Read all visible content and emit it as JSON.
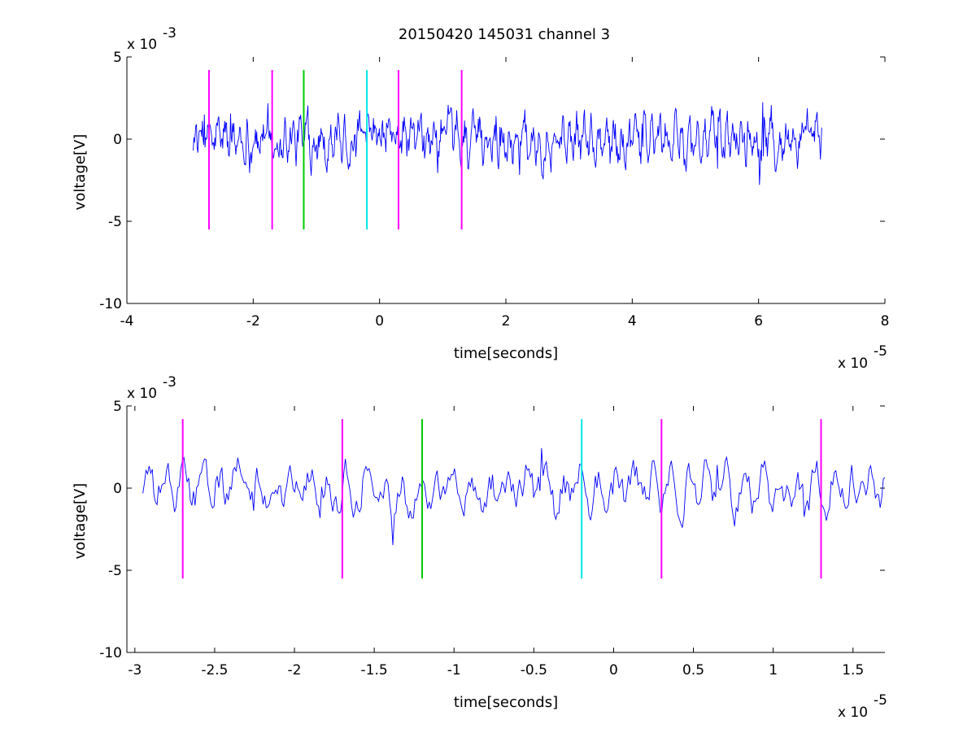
{
  "figure": {
    "title": "20150420 145031 channel 3"
  },
  "chart_data": [
    {
      "type": "line",
      "title": "20150420 145031 channel 3",
      "xlabel": "time[seconds]",
      "ylabel": "voltage[V]",
      "xlim": [
        -4e-05,
        8e-05
      ],
      "ylim": [
        -0.01,
        0.005
      ],
      "x_ticks": [
        -4,
        -2,
        0,
        2,
        4,
        6,
        8
      ],
      "x_tick_labels": [
        "-4",
        "-2",
        "0",
        "2",
        "4",
        "6",
        "8"
      ],
      "x_multiplier_base": "x 10",
      "x_multiplier_exp": "-5",
      "y_ticks": [
        5,
        0,
        -5,
        -10
      ],
      "y_tick_labels": [
        "5",
        "0",
        "-5",
        "-10"
      ],
      "y_multiplier_base": "x 10",
      "y_multiplier_exp": "-3",
      "grid": false,
      "series": [
        {
          "color": "#0000ff",
          "x_range": [
            -2.95e-05,
            7e-05
          ],
          "y_min": -0.005,
          "y_max": 0.0035,
          "sample_count": 960
        }
      ],
      "markers": [
        {
          "x": -2.7e-05,
          "color": "#ff00ff",
          "y_range": [
            -0.0055,
            0.0042
          ]
        },
        {
          "x": -1.7e-05,
          "color": "#ff00ff",
          "y_range": [
            -0.0055,
            0.0042
          ]
        },
        {
          "x": -1.2e-05,
          "color": "#00cc00",
          "y_range": [
            -0.0055,
            0.0042
          ]
        },
        {
          "x": -2e-06,
          "color": "#00e6e6",
          "y_range": [
            -0.0055,
            0.0042
          ]
        },
        {
          "x": 3e-06,
          "color": "#ff00ff",
          "y_range": [
            -0.0055,
            0.0042
          ]
        },
        {
          "x": 1.3e-05,
          "color": "#ff00ff",
          "y_range": [
            -0.0055,
            0.0042
          ]
        }
      ]
    },
    {
      "type": "line",
      "title": "",
      "xlabel": "time[seconds]",
      "ylabel": "voltage[V]",
      "xlim": [
        -3.05e-05,
        1.7e-05
      ],
      "ylim": [
        -0.01,
        0.005
      ],
      "x_ticks": [
        -3,
        -2.5,
        -2,
        -1.5,
        -1,
        -0.5,
        0,
        0.5,
        1,
        1.5
      ],
      "x_tick_labels": [
        "-3",
        "-2.5",
        "-2",
        "-1.5",
        "-1",
        "-0.5",
        "0",
        "0.5",
        "1",
        "1.5"
      ],
      "x_multiplier_base": "x 10",
      "x_multiplier_exp": "-5",
      "y_ticks": [
        5,
        0,
        -5,
        -10
      ],
      "y_tick_labels": [
        "5",
        "0",
        "-5",
        "-10"
      ],
      "y_multiplier_base": "x 10",
      "y_multiplier_exp": "-3",
      "grid": false,
      "series": [
        {
          "color": "#0000ff",
          "x_range": [
            -2.95e-05,
            1.7e-05
          ],
          "y_min": -0.005,
          "y_max": 0.0038,
          "sample_count": 470
        }
      ],
      "markers": [
        {
          "x": -2.7e-05,
          "color": "#ff00ff",
          "y_range": [
            -0.0055,
            0.0042
          ]
        },
        {
          "x": -1.7e-05,
          "color": "#ff00ff",
          "y_range": [
            -0.0055,
            0.0042
          ]
        },
        {
          "x": -1.2e-05,
          "color": "#00cc00",
          "y_range": [
            -0.0055,
            0.0042
          ]
        },
        {
          "x": -2e-06,
          "color": "#00e6e6",
          "y_range": [
            -0.0055,
            0.0042
          ]
        },
        {
          "x": 3e-06,
          "color": "#ff00ff",
          "y_range": [
            -0.0055,
            0.0042
          ]
        },
        {
          "x": 1.3e-05,
          "color": "#ff00ff",
          "y_range": [
            -0.0055,
            0.0042
          ]
        }
      ]
    }
  ]
}
